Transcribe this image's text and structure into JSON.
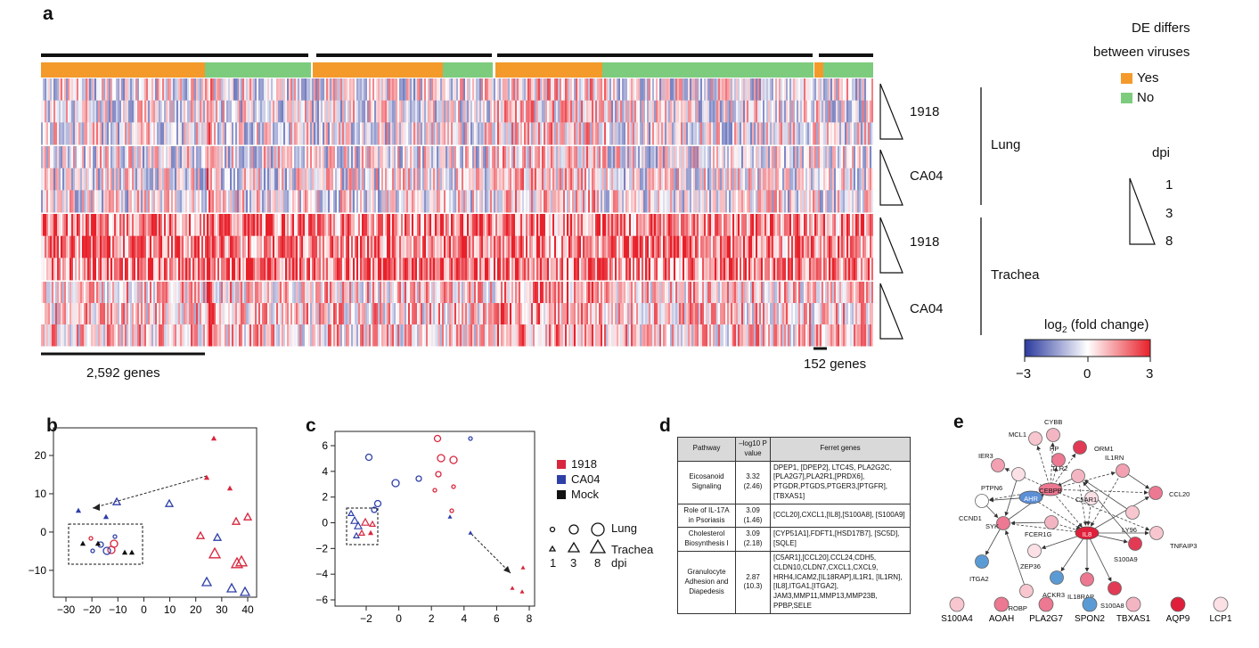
{
  "panel_a": {
    "letter": "a",
    "legend_title_1": "DE differs",
    "legend_title_2": "between viruses",
    "legend_yes": "Yes",
    "legend_no": "No",
    "color_yes": "#f39a2b",
    "color_no": "#7dcc7d",
    "row_labels": [
      "1918",
      "CA04",
      "1918",
      "CA04"
    ],
    "tissue_labels": [
      "Lung",
      "Trachea"
    ],
    "dpi_title": "dpi",
    "dpi_ticks": [
      "1",
      "3",
      "8"
    ],
    "gene_count_left": "2,592 genes",
    "gene_count_right": "152 genes",
    "colorbar_title": "log",
    "colorbar_sub": "2",
    "colorbar_title_rest": " (fold change)",
    "colorbar_ticks": [
      "−3",
      "0",
      "3"
    ],
    "color_low": "#2b3a9e",
    "color_high": "#e8202a"
  },
  "panel_b": {
    "letter": "b",
    "xticks": [
      "−30",
      "−20",
      "−10",
      "0",
      "10",
      "20",
      "30",
      "40"
    ],
    "yticks": [
      "20",
      "10",
      "0",
      "−10"
    ]
  },
  "panel_c": {
    "letter": "c",
    "xticks": [
      "−2",
      "0",
      "2",
      "4",
      "6",
      "8"
    ],
    "yticks": [
      "6",
      "4",
      "2",
      "0",
      "−2",
      "−4",
      "−6"
    ],
    "legend": [
      {
        "label": "1918",
        "color": "#d7263d"
      },
      {
        "label": "CA04",
        "color": "#2e3fa8"
      },
      {
        "label": "Mock",
        "color": "#111111"
      }
    ],
    "shape_lung": "Lung",
    "shape_trachea": "Trachea",
    "dpi_values": [
      "1",
      "3",
      "8"
    ],
    "dpi_label": "dpi"
  },
  "panel_d": {
    "letter": "d",
    "headers": [
      "Pathway",
      "–log10 P value",
      "Ferret genes"
    ],
    "rows": [
      {
        "pathway": "Eicosanoid Signaling",
        "p": "3.32 (2.46)",
        "genes": "DPEP1, [DPEP2], LTC4S, PLA2G2C, [PLA2G7],PLA2R1,[PRDX6], PTGDR,PTGDS,PTGER3,[PTGFR], [TBXAS1]"
      },
      {
        "pathway": "Role of IL-17A in Psoriasis",
        "p": "3.09 (1.46)",
        "genes": "[CCL20],CXCL1,[IL8],[S100A8], [S100A9]"
      },
      {
        "pathway": "Cholesterol Biosynthesis I",
        "p": "3.09 (2.18)",
        "genes": "[CYP51A1],FDFT1,[HSD17B7], [SC5D],[SQLE]"
      },
      {
        "pathway": "Granulocyte Adhesion and Diapedesis",
        "p": "2.87 (10.3)",
        "genes": "[C5AR1],[CCL20],CCL24,CDH5, CLDN10,CLDN7,CXCL1,CXCL9, HRH4,ICAM2,[IL18RAP],IL1R1, [IL1RN],[IL8],ITGA1,[ITGA2], JAM3,MMP11,MMP13,MMP23B, PPBP,SELE"
      }
    ]
  },
  "panel_e": {
    "letter": "e",
    "nodes": [
      {
        "id": "MCL1",
        "color": "#f7c6cf"
      },
      {
        "id": "CYBB",
        "color": "#f4b5c2"
      },
      {
        "id": "ORM1",
        "color": "#e23a55"
      },
      {
        "id": "IER3",
        "color": "#f2a0b2"
      },
      {
        "id": "PTPN6",
        "color": "#fbe0e6"
      },
      {
        "id": "HP",
        "color": "#ec7891"
      },
      {
        "id": "TLR2",
        "color": "#f4b5c2"
      },
      {
        "id": "IL1RN",
        "color": "#f2a0b2"
      },
      {
        "id": "CEBPB",
        "color": "#ec7891"
      },
      {
        "id": "AHR",
        "color": "#5b8fd6"
      },
      {
        "id": "CCND1",
        "color": "#ffffff"
      },
      {
        "id": "C5AR1",
        "color": "#fbe0e6"
      },
      {
        "id": "CCL20",
        "color": "#ec7891"
      },
      {
        "id": "LY96",
        "color": "#f7c6cf"
      },
      {
        "id": "SYK",
        "color": "#ec7891"
      },
      {
        "id": "FCER1G",
        "color": "#f4b5c2"
      },
      {
        "id": "IL8",
        "color": "#e0203a"
      },
      {
        "id": "TNFAIP3",
        "color": "#f7c6cf"
      },
      {
        "id": "ZEP36",
        "color": "#fbe0e6"
      },
      {
        "id": "S100A9",
        "color": "#e23a55"
      },
      {
        "id": "ITGA2",
        "color": "#5b9bd5"
      },
      {
        "id": "ACKR3",
        "color": "#5b9bd5"
      },
      {
        "id": "IL18RAP",
        "color": "#ec7891"
      },
      {
        "id": "S100A8",
        "color": "#e23a55"
      },
      {
        "id": "TYROBP",
        "color": "#f7c6cf"
      }
    ],
    "bottom_nodes": [
      {
        "id": "S100A4",
        "color": "#f7c6cf"
      },
      {
        "id": "AOAH",
        "color": "#ec7891"
      },
      {
        "id": "PLA2G7",
        "color": "#ec7891"
      },
      {
        "id": "SPON2",
        "color": "#5b9bd5"
      },
      {
        "id": "TBXAS1",
        "color": "#f4b5c2"
      },
      {
        "id": "AQP9",
        "color": "#e0203a"
      },
      {
        "id": "LCP1",
        "color": "#fbe0e6"
      }
    ]
  }
}
